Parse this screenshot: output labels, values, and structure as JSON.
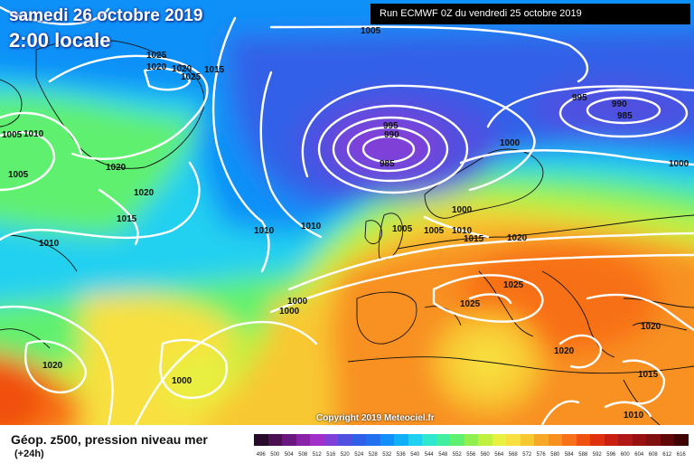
{
  "header": {
    "date_label": "samedi 26 octobre 2019",
    "time_label": "2:00 locale",
    "run_label": "Run ECMWF 0Z du vendredi 25 octobre 2019"
  },
  "copyright": "Copyright 2019 Meteociel.fr",
  "legend": {
    "title": "Géop. z500, pression niveau mer",
    "subtitle": "(+24h)",
    "scale_values": [
      "496",
      "500",
      "504",
      "508",
      "512",
      "516",
      "520",
      "524",
      "528",
      "532",
      "536",
      "540",
      "544",
      "548",
      "552",
      "556",
      "560",
      "564",
      "568",
      "572",
      "576",
      "580",
      "584",
      "588",
      "592",
      "596",
      "600",
      "604",
      "608",
      "612",
      "616"
    ],
    "scale_colors": [
      "#2a0a2a",
      "#4a1050",
      "#6a1880",
      "#8a22a8",
      "#a030c8",
      "#8040d8",
      "#5050e0",
      "#3060e8",
      "#2070f0",
      "#1090f8",
      "#10b0f8",
      "#20d0f0",
      "#30e8d0",
      "#40f0a0",
      "#60f070",
      "#90f050",
      "#c0f040",
      "#e8f040",
      "#f8e040",
      "#f8c830",
      "#f8a828",
      "#f89020",
      "#f87018",
      "#f05010",
      "#e03010",
      "#c82010",
      "#b01818",
      "#981010",
      "#801010",
      "#600808",
      "#400404"
    ]
  },
  "pressure_labels": [
    {
      "text": "1005"
    },
    {
      "text": "1025"
    },
    {
      "text": "1020"
    },
    {
      "text": "1020"
    },
    {
      "text": "1025"
    },
    {
      "text": "1015"
    },
    {
      "text": "1005"
    },
    {
      "text": "1010"
    },
    {
      "text": "1005"
    },
    {
      "text": "1020"
    },
    {
      "text": "1020"
    },
    {
      "text": "1015"
    },
    {
      "text": "1010"
    },
    {
      "text": "1010"
    },
    {
      "text": "1010"
    },
    {
      "text": "995"
    },
    {
      "text": "990"
    },
    {
      "text": "985"
    },
    {
      "text": "995"
    },
    {
      "text": "990"
    },
    {
      "text": "985"
    },
    {
      "text": "1000"
    },
    {
      "text": "1000"
    },
    {
      "text": "1000"
    },
    {
      "text": "1005"
    },
    {
      "text": "1005"
    },
    {
      "text": "1010"
    },
    {
      "text": "1015"
    },
    {
      "text": "1020"
    },
    {
      "text": "1025"
    },
    {
      "text": "1025"
    },
    {
      "text": "1000"
    },
    {
      "text": "1000"
    },
    {
      "text": "1020"
    },
    {
      "text": "1000"
    },
    {
      "text": "1020"
    },
    {
      "text": "1020"
    },
    {
      "text": "1015"
    },
    {
      "text": "1010"
    }
  ]
}
